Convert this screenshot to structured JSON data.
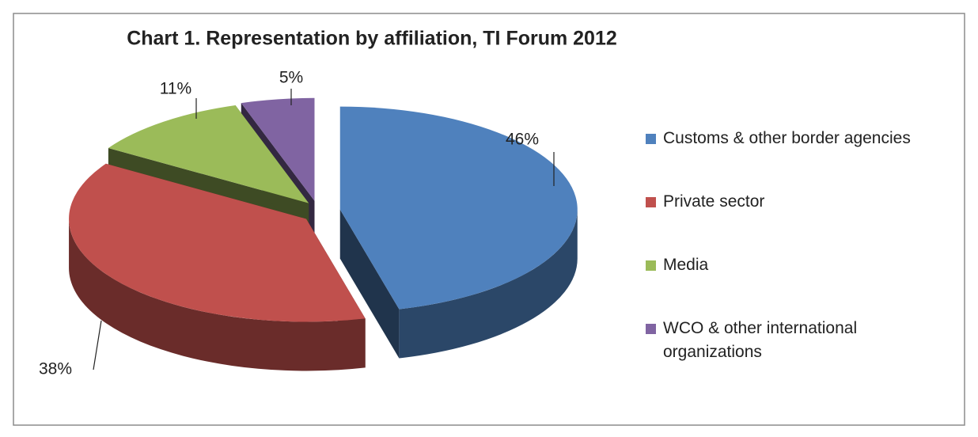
{
  "chart_data": {
    "type": "pie",
    "title": "Chart 1. Representation by affiliation, TI Forum 2012",
    "categories": [
      "Customs & other border agencies",
      "Private sector",
      "Media",
      "WCO & other international organizations"
    ],
    "values": [
      46,
      38,
      11,
      5
    ],
    "value_labels": [
      "46%",
      "38%",
      "11%",
      "5%"
    ],
    "colors": [
      "#4f81bd",
      "#c0504d",
      "#9bbb59",
      "#8064a2"
    ],
    "legend": "right"
  }
}
